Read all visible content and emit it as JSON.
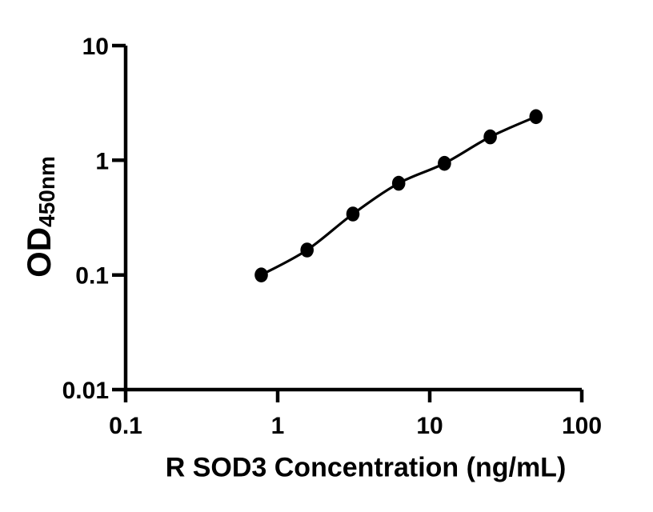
{
  "figure": {
    "background": "#ffffff",
    "axis_color": "#000000"
  },
  "chart_data": {
    "type": "scatter",
    "title": "",
    "xlabel": "R SOD3 Concentration (ng/mL)",
    "ylabel_main": "OD",
    "ylabel_sub": "450nm",
    "xscale": "log",
    "yscale": "log",
    "xlim": [
      0.1,
      100
    ],
    "ylim": [
      0.01,
      10
    ],
    "grid": false,
    "legend": false,
    "axis_color": "#000000",
    "x_ticks": [
      {
        "value": 0.1,
        "label": "0.1"
      },
      {
        "value": 1,
        "label": "1"
      },
      {
        "value": 10,
        "label": "10"
      },
      {
        "value": 100,
        "label": "100"
      }
    ],
    "y_ticks": [
      {
        "value": 0.01,
        "label": "0.01"
      },
      {
        "value": 0.1,
        "label": "0.1"
      },
      {
        "value": 1,
        "label": "1"
      },
      {
        "value": 10,
        "label": "10"
      }
    ],
    "series": [
      {
        "x": [
          0.78,
          1.56,
          3.125,
          6.25,
          12.5,
          25,
          50
        ],
        "y": [
          0.1,
          0.165,
          0.34,
          0.63,
          0.94,
          1.6,
          2.4
        ],
        "marker": "filled-circle",
        "line": "smooth-fit",
        "color": "#000000"
      }
    ]
  }
}
